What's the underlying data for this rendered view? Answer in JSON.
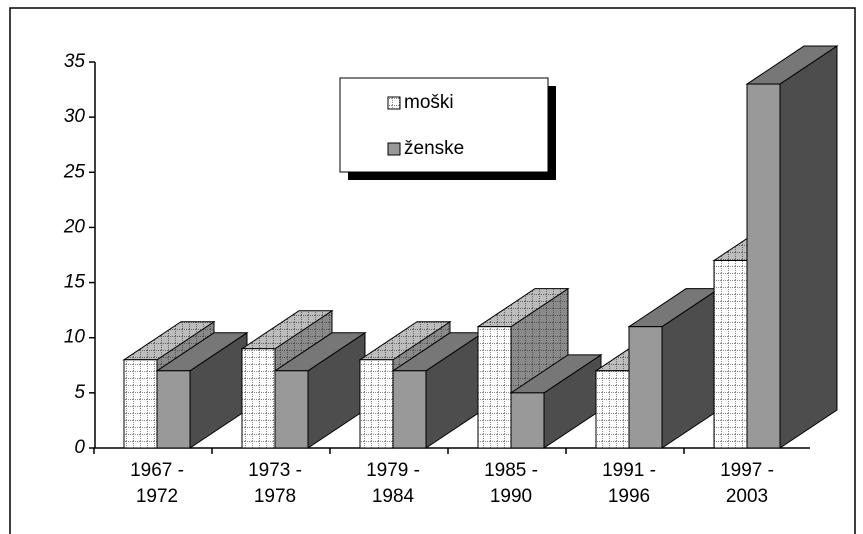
{
  "chart_data": {
    "type": "bar3d",
    "categories": [
      "1967 - 1972",
      "1973 - 1978",
      "1979 - 1984",
      "1985 - 1990",
      "1991 - 1996",
      "1997 - 2003"
    ],
    "series": [
      {
        "name": "moški",
        "color": "#ffffff",
        "values": [
          8,
          9,
          8,
          11,
          7,
          17
        ]
      },
      {
        "name": "ženske",
        "color": "#999999",
        "values": [
          7,
          7,
          7,
          5,
          11,
          33
        ]
      }
    ],
    "ylim": [
      0,
      35
    ],
    "yticks": [
      0,
      5,
      10,
      15,
      20,
      25,
      30,
      35
    ],
    "legend": "top-center"
  }
}
